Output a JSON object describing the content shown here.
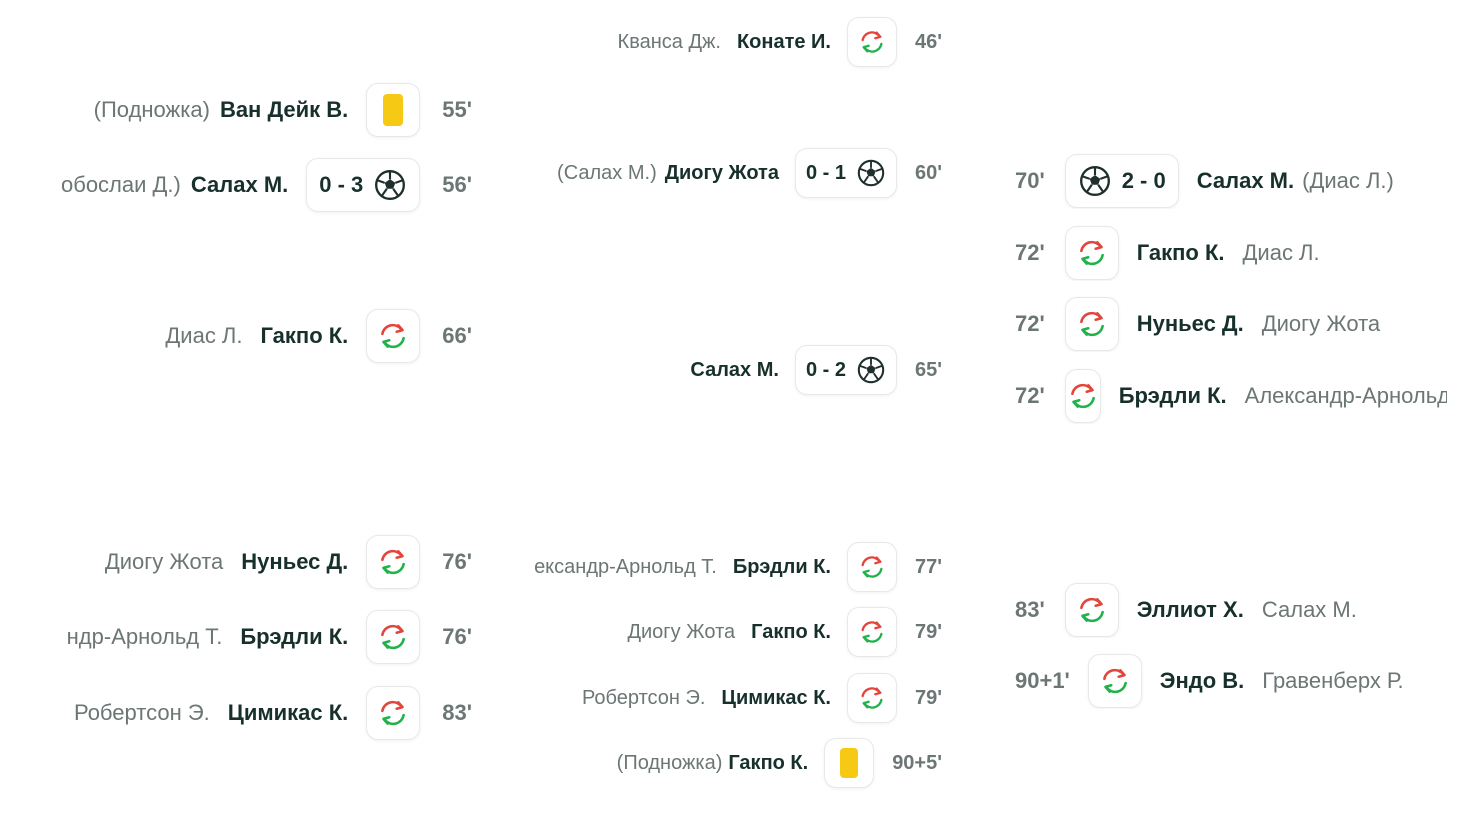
{
  "col1": [
    {
      "secondary": "(Подножка)",
      "player": "Ван Дейк В.",
      "icon": "yellow-card",
      "minute": "55'"
    },
    {
      "secondary": "обослаи Д.)",
      "player": "Салах М.",
      "score": "0 - 3",
      "icon": "ball",
      "minute": "56'"
    },
    {
      "secondary": "Диас Л.",
      "player": "Гакпо К.",
      "icon": "substitution",
      "minute": "66'"
    },
    {
      "secondary": "Диогу Жота",
      "player": "Нуньес Д.",
      "icon": "substitution",
      "minute": "76'"
    },
    {
      "secondary": "ндр-Арнольд Т.",
      "player": "Брэдли К.",
      "icon": "substitution",
      "minute": "76'"
    },
    {
      "secondary": "Робертсон Э.",
      "player": "Цимикас К.",
      "icon": "substitution",
      "minute": "83'"
    }
  ],
  "col2": [
    {
      "secondary": "Кванса Дж.",
      "player": "Конате И.",
      "icon": "substitution",
      "minute": "46'"
    },
    {
      "secondary": "(Салах М.)",
      "player": "Диогу Жота",
      "score": "0 - 1",
      "icon": "ball",
      "minute": "60'"
    },
    {
      "secondary": "",
      "player": "Салах М.",
      "score": "0 - 2",
      "icon": "ball",
      "minute": "65'"
    },
    {
      "secondary": "ександр-Арнольд Т.",
      "player": "Брэдли К.",
      "icon": "substitution",
      "minute": "77'"
    },
    {
      "secondary": "Диогу Жота",
      "player": "Гакпо К.",
      "icon": "substitution",
      "minute": "79'"
    },
    {
      "secondary": "Робертсон Э.",
      "player": "Цимикас К.",
      "icon": "substitution",
      "minute": "79'"
    },
    {
      "secondary": "(Подножка)",
      "player": "Гакпо К.",
      "icon": "yellow-card",
      "minute": "90+5'"
    }
  ],
  "col3": [
    {
      "minute": "70'",
      "icon": "ball",
      "score": "2 - 0",
      "player": "Салах М.",
      "secondary": "(Диас Л.)"
    },
    {
      "minute": "72'",
      "icon": "substitution",
      "player": "Гакпо К.",
      "secondary": "Диас Л."
    },
    {
      "minute": "72'",
      "icon": "substitution",
      "player": "Нуньес Д.",
      "secondary": "Диогу Жота"
    },
    {
      "minute": "72'",
      "icon": "substitution",
      "player": "Брэдли К.",
      "secondary": "Александр-Арнольд Т."
    },
    {
      "minute": "83'",
      "icon": "substitution",
      "player": "Эллиот Х.",
      "secondary": "Салах М."
    },
    {
      "minute": "90+1'",
      "icon": "substitution",
      "player": "Эндо В.",
      "secondary": "Гравенберх Р."
    }
  ]
}
